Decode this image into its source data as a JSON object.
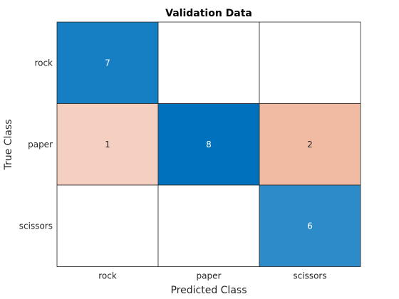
{
  "chart_data": {
    "type": "heatmap",
    "title": "Validation Data",
    "xlabel": "Predicted Class",
    "ylabel": "True Class",
    "x_categories": [
      "rock",
      "paper",
      "scissors"
    ],
    "y_categories": [
      "rock",
      "paper",
      "scissors"
    ],
    "values": [
      [
        7,
        null,
        null
      ],
      [
        1,
        8,
        2
      ],
      [
        null,
        null,
        6
      ]
    ],
    "colors": {
      "correct_high": "#0072BD",
      "correct_low": "#ffffff",
      "incorrect_high": "#D95319",
      "incorrect_low": "#ffffff",
      "correct_label_light": "#ffffff",
      "dark_label": "#262626",
      "grid": "#262626"
    }
  }
}
